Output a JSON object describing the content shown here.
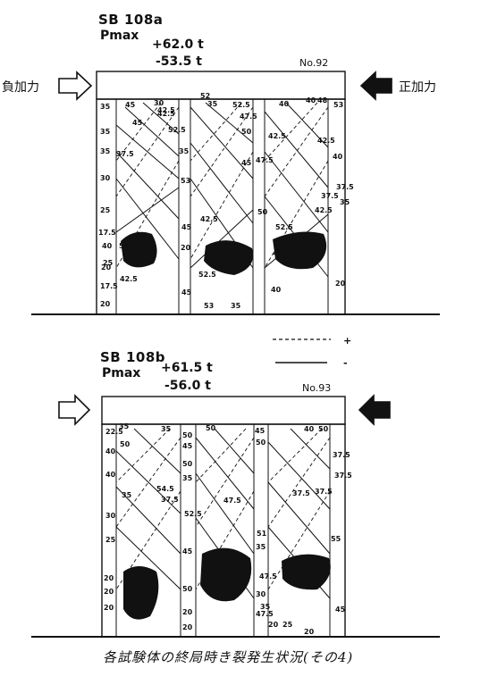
{
  "specimen_a": {
    "title": "SB 108a",
    "pmax_label": "Pmax",
    "pmax_pos": "+62.0 t",
    "pmax_neg": "-53.5 t",
    "no": "No.92",
    "load_neg": "負加力",
    "load_pos": "正加力",
    "labels": [
      "35",
      "45",
      "30",
      "42.5",
      "52",
      "35",
      "52.5",
      "40",
      "40",
      "48",
      "53",
      "35",
      "45",
      "52.5",
      "42.5",
      "35",
      "47.5",
      "50",
      "42.5",
      "47.5",
      "42.5",
      "35",
      "45",
      "37.5",
      "40",
      "30",
      "53",
      "37.5",
      "25",
      "42.5",
      "42.5",
      "35",
      "37.5",
      "17.5",
      "40",
      "50",
      "45",
      "25",
      "52.5",
      "20",
      "40",
      "20",
      "42.5",
      "52.5",
      "50",
      "40",
      "17.5",
      "45",
      "53",
      "35",
      "20",
      "20"
    ]
  },
  "specimen_b": {
    "title": "SB 108b",
    "pmax_label": "Pmax",
    "pmax_pos": "+61.5 t",
    "pmax_neg": "-56.0 t",
    "no": "No.93",
    "labels": [
      "22.5",
      "35",
      "50",
      "35",
      "50",
      "50",
      "40",
      "45",
      "50",
      "40",
      "50",
      "45",
      "37.5",
      "40",
      "54.5",
      "37.5",
      "47.5",
      "37.5",
      "35",
      "37.5",
      "50",
      "52.5",
      "37.5",
      "30",
      "35",
      "51",
      "25",
      "35",
      "55",
      "45",
      "47.5",
      "20",
      "20",
      "50",
      "30",
      "35",
      "20",
      "47.5",
      "20",
      "20",
      "20",
      "25",
      "20",
      "45"
    ]
  },
  "legend": {
    "dashed_sign": "+",
    "solid_sign": "-"
  },
  "caption": "各試験体の終局時き裂発生状況(その4)"
}
